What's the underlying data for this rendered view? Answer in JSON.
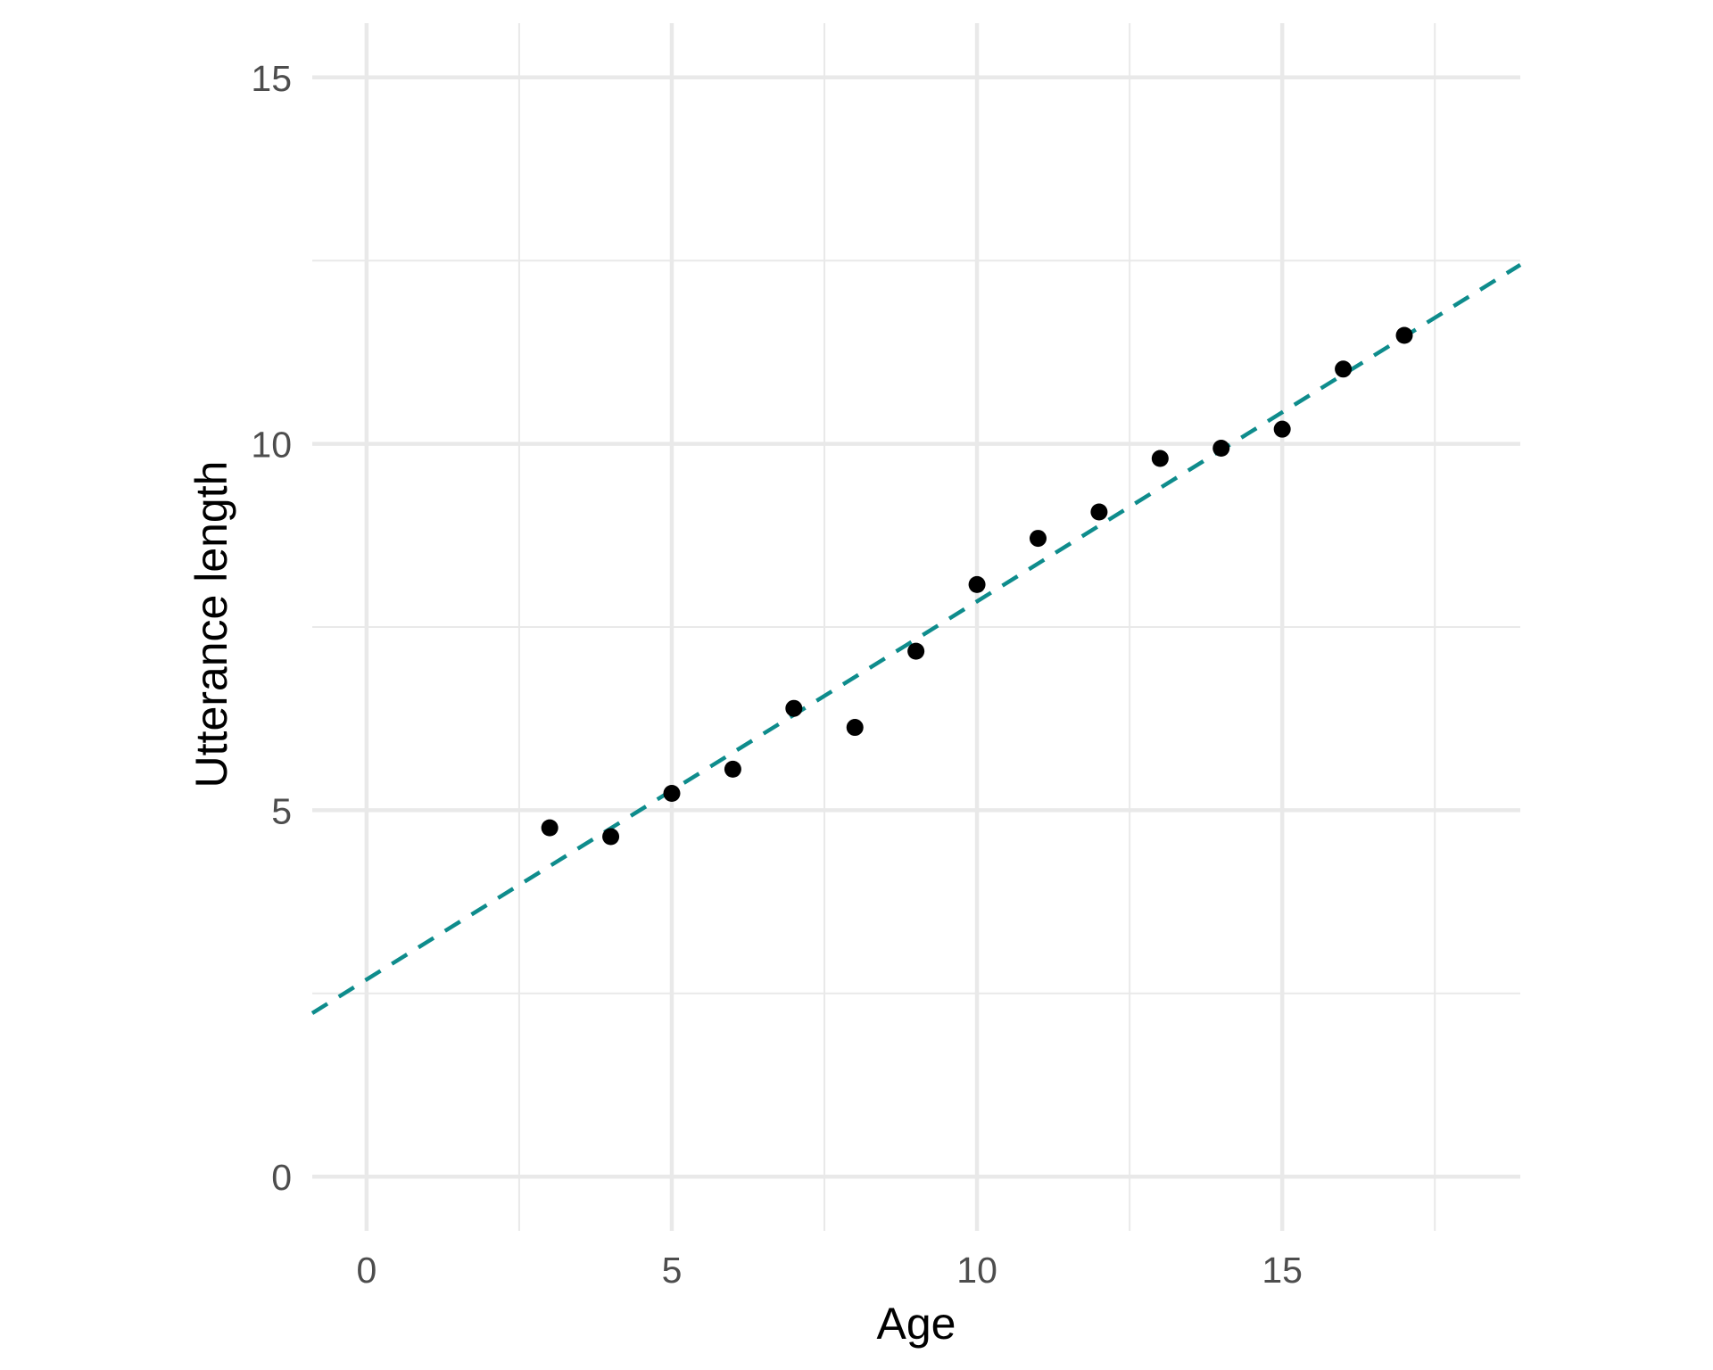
{
  "figure": {
    "background": "#FFFFFF"
  },
  "chart_data": {
    "type": "scatter",
    "title": "",
    "xlabel": "Age",
    "ylabel": "Utterance length",
    "x": [
      3,
      4,
      5,
      6,
      7,
      8,
      9,
      10,
      11,
      12,
      13,
      14,
      15,
      16,
      17
    ],
    "y": [
      4.76,
      4.64,
      5.23,
      5.56,
      6.39,
      6.13,
      7.17,
      8.08,
      8.71,
      9.07,
      9.8,
      9.94,
      10.2,
      11.02,
      11.48
    ],
    "xlim": [
      -0.89,
      18.9
    ],
    "ylim": [
      -0.74,
      15.74
    ],
    "x_major_ticks": [
      0,
      5,
      10,
      15
    ],
    "y_major_ticks": [
      0,
      5,
      10,
      15
    ],
    "x_minor_ticks": [
      2.5,
      7.5,
      12.5,
      17.5
    ],
    "y_minor_ticks": [
      2.5,
      7.5,
      12.5
    ],
    "grid": "major-and-minor",
    "legend": "none",
    "trend_line": {
      "style": "dashed",
      "slope": 0.516,
      "intercept": 2.69,
      "x_start": -0.89,
      "x_end": 18.9,
      "color": "#0E8C8C"
    },
    "point_color": "#000000",
    "grid_color": "#E9E9E9",
    "tick_label_color": "#4D4D4D",
    "axis_title_color": "#000000"
  }
}
